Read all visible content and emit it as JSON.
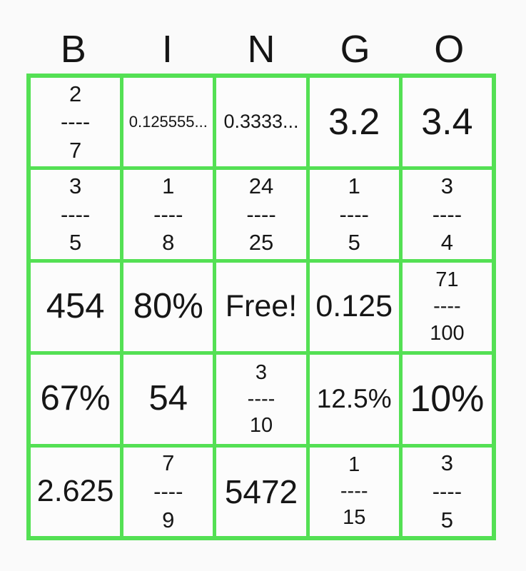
{
  "colors": {
    "grid_line_green": "#54e054",
    "cell_background": "#fcfcfc",
    "page_background": "#fafafa",
    "text_color": "#161616"
  },
  "header": {
    "letters": [
      "B",
      "I",
      "N",
      "G",
      "O"
    ]
  },
  "card": {
    "rows": [
      [
        {
          "type": "fraction",
          "numerator": "2",
          "bar": "----",
          "denominator": "7",
          "size": 31
        },
        {
          "type": "text",
          "value": "0.125555...",
          "size": 22
        },
        {
          "type": "text",
          "value": "0.3333...",
          "size": 27
        },
        {
          "type": "text",
          "value": "3.2",
          "size": 52
        },
        {
          "type": "text",
          "value": "3.4",
          "size": 52
        }
      ],
      [
        {
          "type": "fraction",
          "numerator": "3",
          "bar": "----",
          "denominator": "5",
          "size": 31
        },
        {
          "type": "fraction",
          "numerator": "1",
          "bar": "----",
          "denominator": "8",
          "size": 31
        },
        {
          "type": "fraction",
          "numerator": "24",
          "bar": "----",
          "denominator": "25",
          "size": 31
        },
        {
          "type": "fraction",
          "numerator": "1",
          "bar": "----",
          "denominator": "5",
          "size": 31
        },
        {
          "type": "fraction",
          "numerator": "3",
          "bar": "----",
          "denominator": "4",
          "size": 31
        }
      ],
      [
        {
          "type": "text",
          "value": "454",
          "size": 49
        },
        {
          "type": "text",
          "value": "80%",
          "size": 49
        },
        {
          "type": "text",
          "value": "Free!",
          "size": 43,
          "free": true
        },
        {
          "type": "text",
          "value": "0.125",
          "size": 43
        },
        {
          "type": "fraction",
          "numerator": "71",
          "bar": "----",
          "denominator": "100",
          "size": 29
        }
      ],
      [
        {
          "type": "text",
          "value": "67%",
          "size": 49
        },
        {
          "type": "text",
          "value": "54",
          "size": 49
        },
        {
          "type": "fraction",
          "numerator": "3",
          "bar": "----",
          "denominator": "10",
          "size": 29
        },
        {
          "type": "text",
          "value": "12.5%",
          "size": 37
        },
        {
          "type": "text",
          "value": "10%",
          "size": 52
        }
      ],
      [
        {
          "type": "text",
          "value": "2.625",
          "size": 43
        },
        {
          "type": "fraction",
          "numerator": "7",
          "bar": "----",
          "denominator": "9",
          "size": 31
        },
        {
          "type": "text",
          "value": "5472",
          "size": 46
        },
        {
          "type": "fraction",
          "numerator": "1",
          "bar": "----",
          "denominator": "15",
          "size": 29
        },
        {
          "type": "fraction",
          "numerator": "3",
          "bar": "----",
          "denominator": "5",
          "size": 31
        }
      ]
    ]
  }
}
